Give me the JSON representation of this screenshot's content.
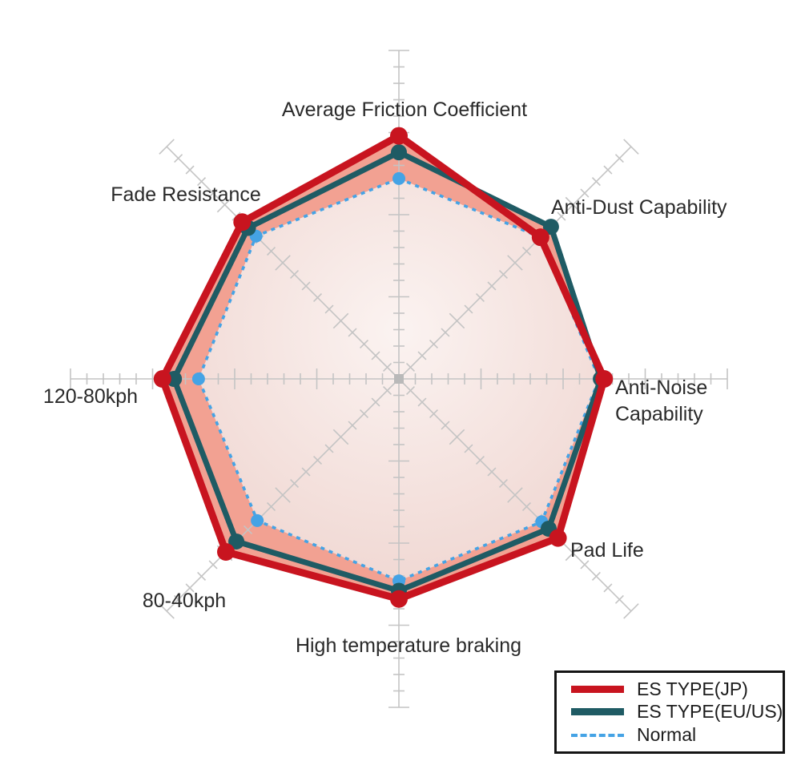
{
  "chart_data": {
    "type": "radar",
    "categories": [
      "Average Friction Coefficient",
      "Anti-Dust Capability",
      "Anti-Noise Capability",
      "Pad Life",
      "High temperature braking",
      "80-40kph",
      "120-80kph",
      "Fade Resistance"
    ],
    "axis_max": 10,
    "num_axes": 8,
    "grid": "radial axes with perpendicular tick marks, no rings",
    "series": [
      {
        "name": "ES TYPE(JP)",
        "color": "#c8141f",
        "line": "solid",
        "marker": "circle",
        "values": [
          7.4,
          6.1,
          6.25,
          6.85,
          6.7,
          7.45,
          7.2,
          6.75
        ]
      },
      {
        "name": "ES TYPE(EU/US)",
        "color": "#1f5b64",
        "line": "solid",
        "marker": "circle",
        "values": [
          6.9,
          6.55,
          6.15,
          6.45,
          6.45,
          7.0,
          6.85,
          6.5
        ]
      },
      {
        "name": "Normal",
        "color": "#45a3e5",
        "line": "dashed",
        "marker": "circle",
        "values": [
          6.1,
          6.1,
          6.1,
          6.15,
          6.15,
          6.1,
          6.1,
          6.15
        ]
      }
    ],
    "fill": {
      "band": "#f2a192",
      "inner_center": "#fbf3f1",
      "inner_edge": "#f0d7d2"
    },
    "axis_color": "#c4c4c4",
    "label_color": "#2a2a2a",
    "legend_position": "bottom-right"
  },
  "legend": {
    "border_color": "#141414"
  }
}
